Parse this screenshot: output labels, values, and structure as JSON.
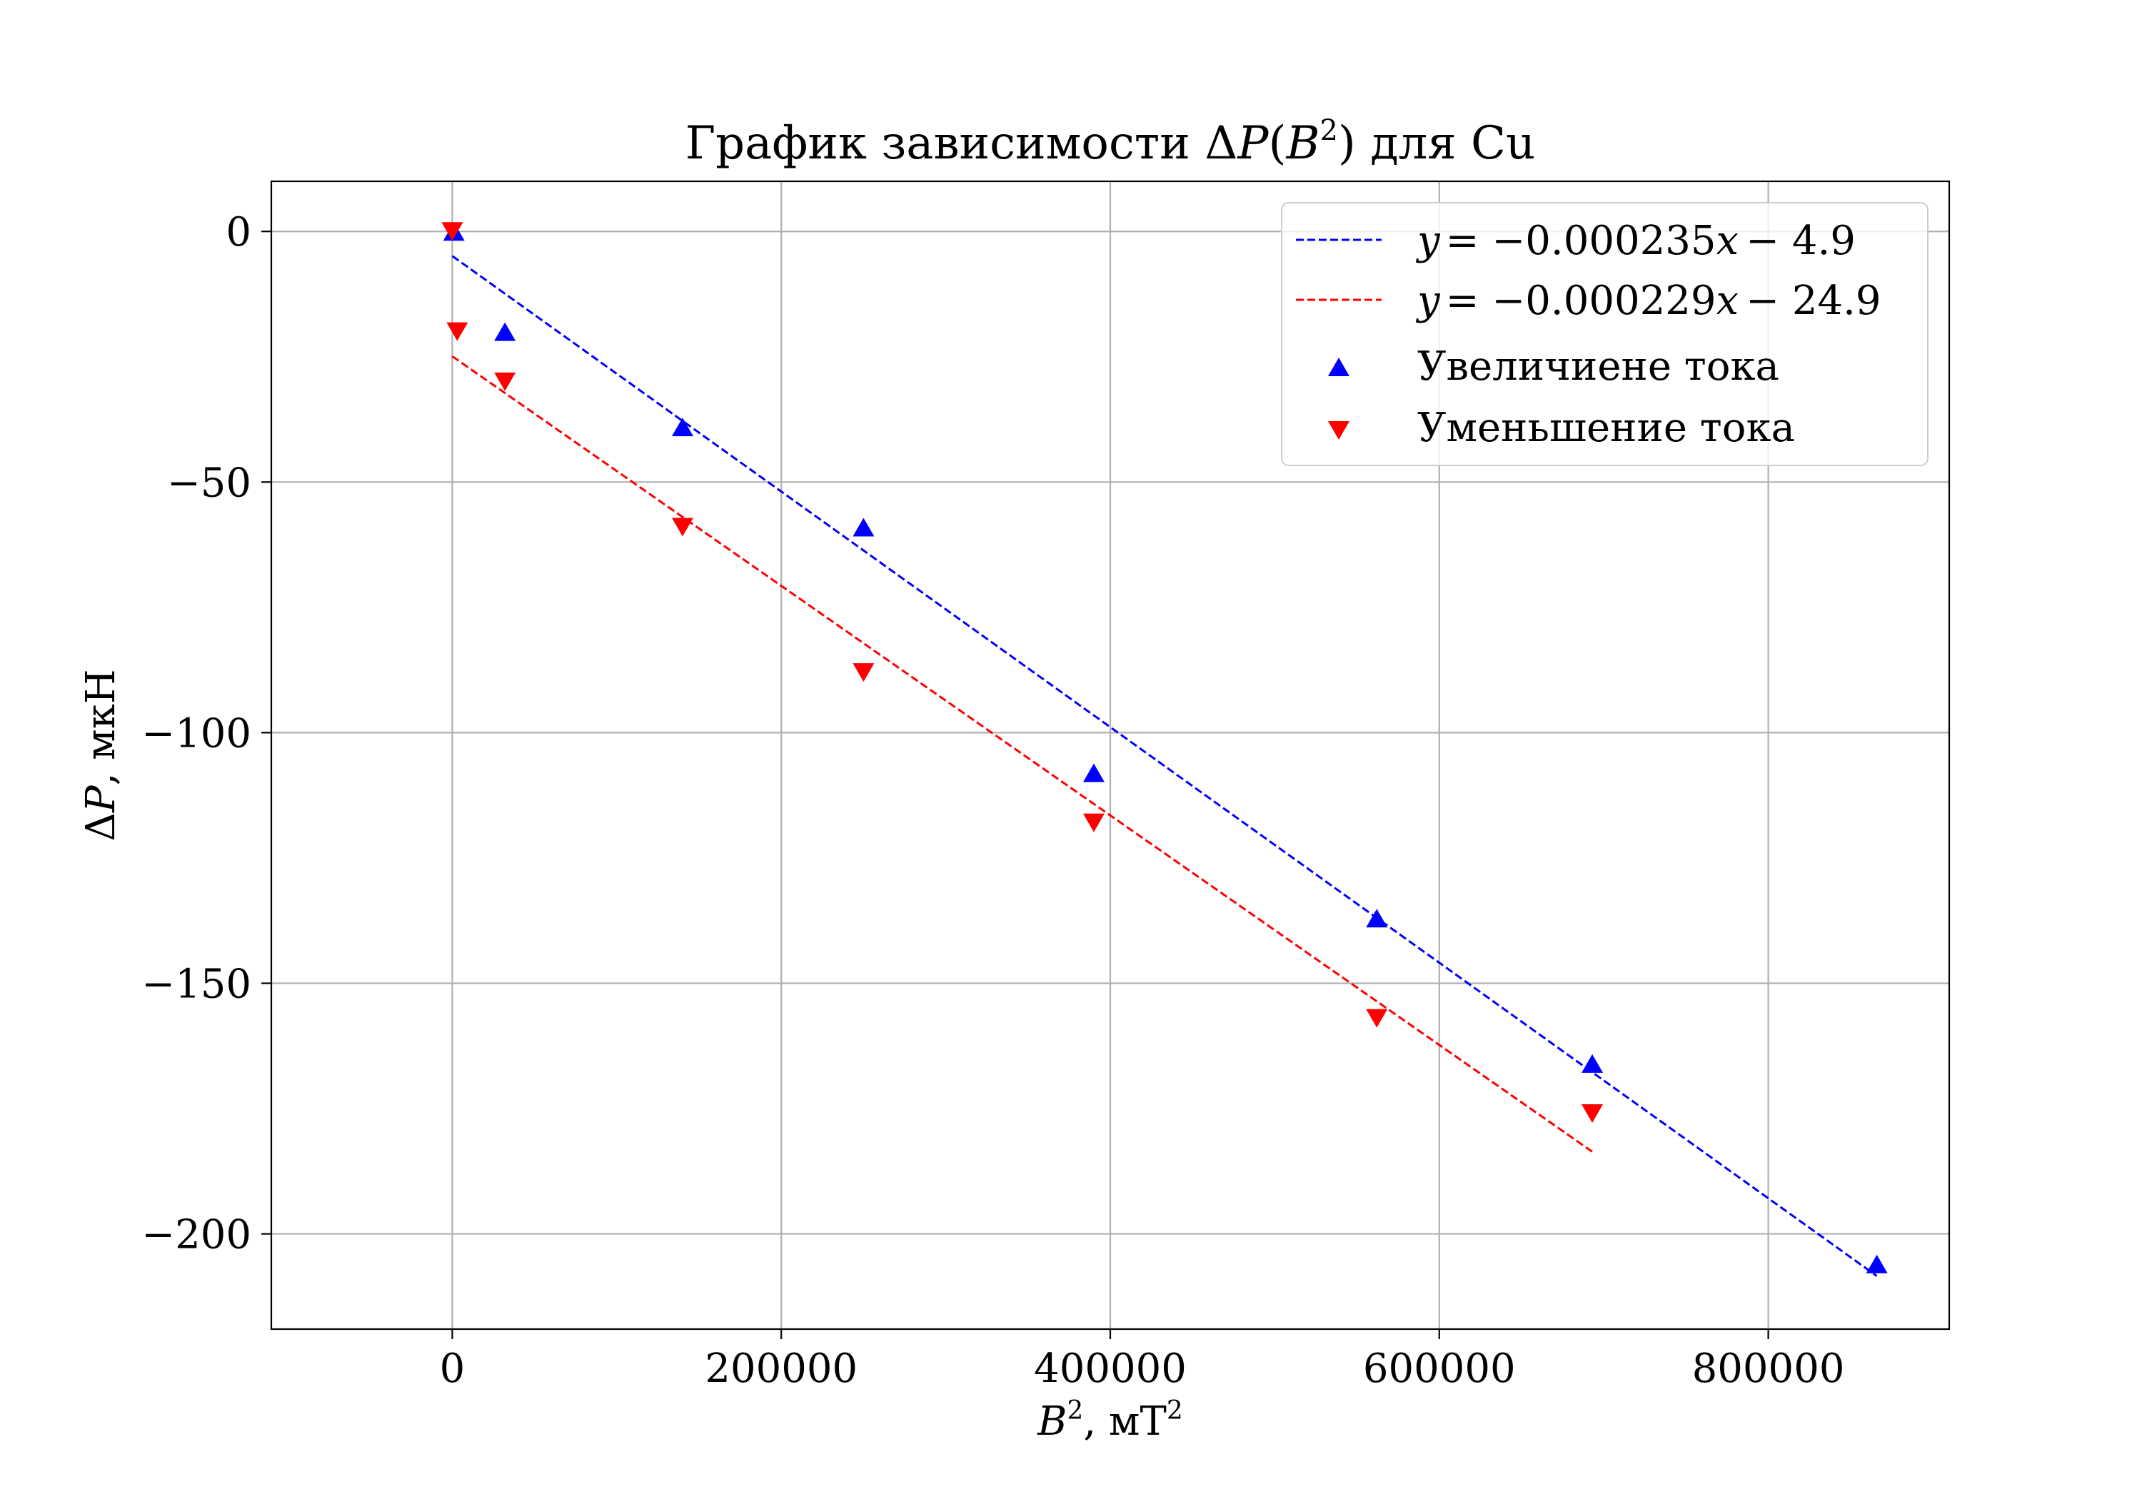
{
  "chart_data": {
    "type": "scatter",
    "title": "График зависимости ΔP(B²) для Cu",
    "xlabel": "B², мТ²",
    "ylabel": "ΔP, мкН",
    "xlim": [
      -110000,
      910000
    ],
    "ylim": [
      -219,
      10
    ],
    "xticks": [
      0,
      200000,
      400000,
      600000,
      800000
    ],
    "xtick_labels": [
      "0",
      "200000",
      "400000",
      "600000",
      "800000"
    ],
    "yticks": [
      0,
      -50,
      -100,
      -150,
      -200
    ],
    "ytick_labels": [
      "0",
      "−50",
      "−100",
      "−150",
      "−200"
    ],
    "grid": true,
    "legend_position": "top-right",
    "series": [
      {
        "name": "Увеличиене тока",
        "kind": "scatter",
        "marker": "triangle-up",
        "color": "#0000ff",
        "x": [
          1000,
          32000,
          140000,
          250000,
          390000,
          562000,
          693000,
          866000
        ],
        "y": [
          0,
          -20,
          -39,
          -59,
          -108,
          -137,
          -166,
          -206
        ]
      },
      {
        "name": "Уменьшение тока",
        "kind": "scatter",
        "marker": "triangle-down",
        "color": "#ff0000",
        "x": [
          0,
          3000,
          32000,
          140000,
          250000,
          390000,
          562000,
          693000
        ],
        "y": [
          0,
          -20,
          -30,
          -59,
          -88,
          -118,
          -157,
          -176
        ]
      },
      {
        "name": "y = −0.000235x − 4.9",
        "kind": "fit-line",
        "style": "dashed",
        "color": "#0000ff",
        "x": [
          0,
          866000
        ],
        "y": [
          -4.9,
          -208.41
        ]
      },
      {
        "name": "y = −0.000229x − 24.9",
        "kind": "fit-line",
        "style": "dashed",
        "color": "#ff0000",
        "x": [
          0,
          693000
        ],
        "y": [
          -24.9,
          -183.6
        ]
      }
    ],
    "legend": [
      {
        "label": "y = −0.000235x − 4.9",
        "ref": 2
      },
      {
        "label": "y = −0.000229x − 24.9",
        "ref": 3
      },
      {
        "label": "Увеличиене тока",
        "ref": 0
      },
      {
        "label": "Уменьшение тока",
        "ref": 1
      }
    ]
  },
  "title": {
    "prefix": "График зависимости Δ",
    "p": "P",
    "open": "(",
    "b": "B",
    "sup": "2",
    "close": ") для Cu"
  },
  "x_label": {
    "b": "B",
    "sup": "2",
    "unit": ", мТ",
    "unit_sup": "2"
  },
  "y_label": {
    "delta": "Δ",
    "p": "P",
    "unit": ", мкН"
  },
  "legend_text": {
    "blue_y": "y",
    "blue_eq": "= −0.000235",
    "blue_x": "x",
    "blue_c": "− 4.9",
    "red_y": "y",
    "red_eq": "= −0.000229",
    "red_x": "x",
    "red_c": "− 24.9",
    "up": "Увеличиене тока",
    "down": "Уменьшение тока"
  }
}
